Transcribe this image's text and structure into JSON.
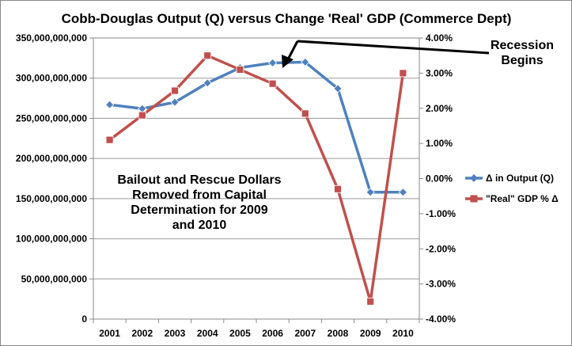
{
  "chart_data": {
    "type": "line",
    "title": "Cobb-Douglas Output (Q) versus Change 'Real' GDP (Commerce Dept)",
    "categories": [
      "2001",
      "2002",
      "2003",
      "2004",
      "2005",
      "2006",
      "2007",
      "2008",
      "2009",
      "2010"
    ],
    "y_left": {
      "ylim": [
        0,
        350000000000
      ],
      "ticks": [
        0,
        50000000000,
        100000000000,
        150000000000,
        200000000000,
        250000000000,
        300000000000,
        350000000000
      ],
      "tick_labels": [
        "0",
        "50,000,000,000",
        "100,000,000,000",
        "150,000,000,000",
        "200,000,000,000",
        "250,000,000,000",
        "300,000,000,000",
        "350,000,000,000"
      ]
    },
    "y_right": {
      "ylim": [
        -4,
        4
      ],
      "ticks": [
        -4,
        -3,
        -2,
        -1,
        0,
        1,
        2,
        3,
        4
      ],
      "tick_labels": [
        "-4.00%",
        "-3.00%",
        "-2.00%",
        "-1.00%",
        "0.00%",
        "1.00%",
        "2.00%",
        "3.00%",
        "4.00%"
      ]
    },
    "series": [
      {
        "name": "Δ in Output (Q)",
        "axis": "left",
        "color": "#4f81bd",
        "marker": "diamond",
        "values": [
          267000000000,
          262000000000,
          270000000000,
          294000000000,
          313000000000,
          319000000000,
          320000000000,
          287000000000,
          158000000000,
          158000000000
        ]
      },
      {
        "name": "\"Real\" GDP % Δ",
        "axis": "right",
        "color": "#c0504d",
        "marker": "square",
        "values": [
          1.1,
          1.8,
          2.5,
          3.5,
          3.1,
          2.7,
          1.85,
          -0.3,
          -3.5,
          3.0
        ]
      }
    ],
    "annotations": [
      {
        "name": "recession",
        "lines": [
          "Recession",
          "Begins"
        ]
      },
      {
        "name": "bailout",
        "lines": [
          "Bailout and Rescue Dollars",
          "Removed from Capital",
          "Determination for 2009",
          "and 2010"
        ]
      }
    ],
    "grid": true,
    "legend_position": "right"
  }
}
